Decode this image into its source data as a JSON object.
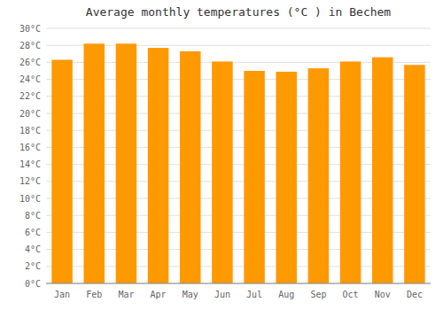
{
  "chart_data": {
    "type": "bar",
    "title": "Average monthly temperatures (°C ) in Bechem",
    "categories": [
      "Jan",
      "Feb",
      "Mar",
      "Apr",
      "May",
      "Jun",
      "Jul",
      "Aug",
      "Sep",
      "Oct",
      "Nov",
      "Dec"
    ],
    "values": [
      26.3,
      28.2,
      28.2,
      27.7,
      27.3,
      26.1,
      25.0,
      24.9,
      25.3,
      26.1,
      26.6,
      25.7
    ],
    "color": "#FF9900",
    "ylim": [
      0,
      30
    ],
    "yticks": [
      {
        "value": 0,
        "label": "0°C"
      },
      {
        "value": 2,
        "label": "2°C"
      },
      {
        "value": 4,
        "label": "4°C"
      },
      {
        "value": 6,
        "label": "6°C"
      },
      {
        "value": 8,
        "label": "8°C"
      },
      {
        "value": 10,
        "label": "10°C"
      },
      {
        "value": 12,
        "label": "12°C"
      },
      {
        "value": 14,
        "label": "14°C"
      },
      {
        "value": 16,
        "label": "16°C"
      },
      {
        "value": 18,
        "label": "18°C"
      },
      {
        "value": 20,
        "label": "20°C"
      },
      {
        "value": 22,
        "label": "22°C"
      },
      {
        "value": 24,
        "label": "24°C"
      },
      {
        "value": 26,
        "label": "26°C"
      },
      {
        "value": 28,
        "label": "28°C"
      },
      {
        "value": 30,
        "label": "30°C"
      }
    ],
    "grid": true
  }
}
